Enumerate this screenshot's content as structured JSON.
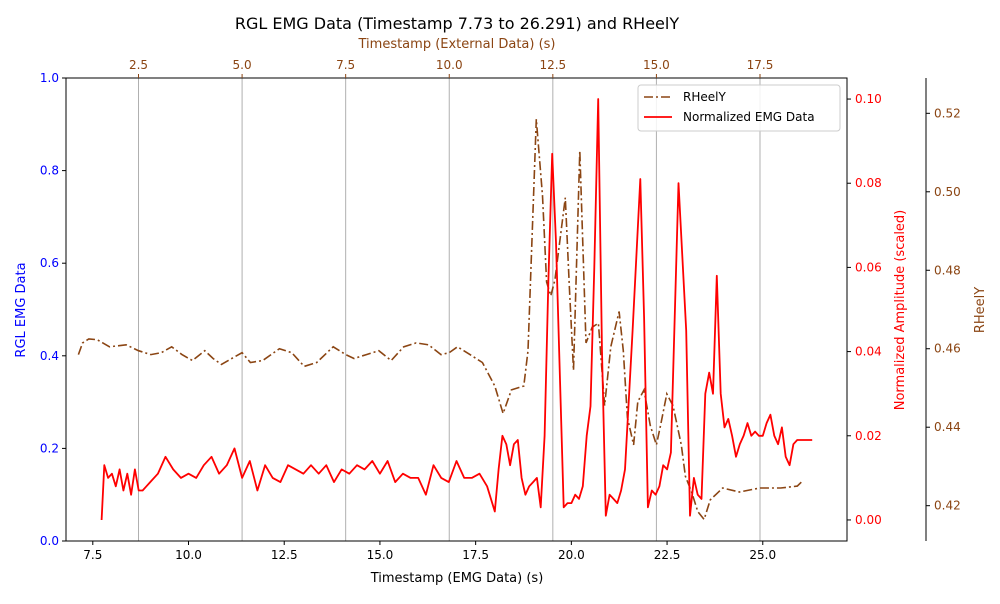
{
  "colors": {
    "left_axis": "#0000ff",
    "right_axis": "#ff0000",
    "far_right_axis": "#8b4513",
    "top_axis": "#8b4513",
    "emg_line": "#ff0000",
    "rheel_line": "#8b4513",
    "grid": "#b0b0b0"
  },
  "chart_data": {
    "type": "line",
    "title": "RGL EMG Data (Timestamp 7.73 to 26.291) and RHeelY",
    "xlabel": "Timestamp (EMG Data) (s)",
    "xlim": [
      6.8,
      27.2
    ],
    "xticks": [
      "7.5",
      "10.0",
      "12.5",
      "15.0",
      "17.5",
      "20.0",
      "22.5",
      "25.0"
    ],
    "top_axis": {
      "label": "Timestamp (External Data) (s)",
      "xlim": [
        0.75,
        19.6
      ],
      "ticks": [
        "2.5",
        "5.0",
        "7.5",
        "10.0",
        "12.5",
        "15.0",
        "17.5"
      ],
      "grid": true
    },
    "left_axis": {
      "label": "RGL EMG Data",
      "ylim": [
        0.0,
        1.0
      ],
      "ticks": [
        "0.0",
        "0.2",
        "0.4",
        "0.6",
        "0.8",
        "1.0"
      ]
    },
    "right_axis": {
      "label": "Normalized Amplitude (scaled)",
      "ylim": [
        -0.005,
        0.105
      ],
      "ticks": [
        "0.00",
        "0.02",
        "0.04",
        "0.06",
        "0.08",
        "0.10"
      ]
    },
    "far_right_axis": {
      "label": "RHeelY",
      "ylim": [
        0.411,
        0.529
      ],
      "ticks": [
        "0.42",
        "0.44",
        "0.46",
        "0.48",
        "0.50",
        "0.52"
      ]
    },
    "legend": {
      "position": "top-right",
      "entries": [
        "RHeelY",
        "Normalized EMG Data"
      ]
    },
    "series": [
      {
        "name": "RHeelY",
        "axis": "top/far_right",
        "style": "dash-dot",
        "x": [
          1.05,
          1.15,
          1.3,
          1.5,
          1.8,
          2.2,
          2.5,
          2.8,
          3.05,
          3.3,
          3.55,
          3.8,
          4.1,
          4.3,
          4.5,
          4.75,
          5.0,
          5.2,
          5.5,
          5.7,
          5.9,
          6.2,
          6.5,
          6.8,
          7.2,
          7.5,
          7.7,
          8.0,
          8.3,
          8.6,
          8.9,
          9.2,
          9.5,
          9.8,
          10.0,
          10.2,
          10.5,
          10.8,
          11.1,
          11.3,
          11.5,
          11.8,
          11.9,
          12.1,
          12.25,
          12.35,
          12.45,
          12.55,
          12.8,
          12.9,
          13.0,
          13.15,
          13.3,
          13.45,
          13.6,
          13.75,
          13.9,
          14.1,
          14.2,
          14.3,
          14.45,
          14.55,
          14.7,
          14.85,
          15.0,
          15.1,
          15.25,
          15.4,
          15.6,
          15.7,
          15.85,
          16.0,
          16.15,
          16.3,
          16.45,
          16.6,
          17.0,
          17.5,
          18.0,
          18.4,
          18.5
        ],
        "values": [
          0.4585,
          0.4615,
          0.4625,
          0.4623,
          0.4605,
          0.461,
          0.4595,
          0.4585,
          0.459,
          0.4605,
          0.4585,
          0.457,
          0.4595,
          0.4575,
          0.456,
          0.4575,
          0.459,
          0.4565,
          0.457,
          0.4585,
          0.46,
          0.459,
          0.4555,
          0.4565,
          0.4605,
          0.4585,
          0.4575,
          0.4585,
          0.4595,
          0.457,
          0.4605,
          0.4615,
          0.461,
          0.4585,
          0.459,
          0.4605,
          0.4585,
          0.4565,
          0.4505,
          0.4435,
          0.4495,
          0.4505,
          0.4595,
          0.5185,
          0.499,
          0.477,
          0.4735,
          0.4775,
          0.4985,
          0.4755,
          0.4545,
          0.5105,
          0.4615,
          0.4655,
          0.4665,
          0.4455,
          0.4605,
          0.4695,
          0.4595,
          0.4425,
          0.4355,
          0.4465,
          0.4495,
          0.4405,
          0.4355,
          0.4405,
          0.4485,
          0.4455,
          0.4355,
          0.4275,
          0.4235,
          0.4185,
          0.4165,
          0.4215,
          0.423,
          0.4245,
          0.4235,
          0.4245,
          0.4245,
          0.425,
          0.426
        ]
      },
      {
        "name": "Normalized EMG Data",
        "axis": "bottom/right",
        "style": "solid",
        "x": [
          7.73,
          7.8,
          7.9,
          8.0,
          8.1,
          8.2,
          8.3,
          8.4,
          8.5,
          8.6,
          8.7,
          8.8,
          8.9,
          9.0,
          9.2,
          9.4,
          9.6,
          9.8,
          10.0,
          10.2,
          10.4,
          10.6,
          10.8,
          11.0,
          11.2,
          11.4,
          11.6,
          11.8,
          12.0,
          12.2,
          12.4,
          12.6,
          12.8,
          13.0,
          13.2,
          13.4,
          13.6,
          13.8,
          14.0,
          14.2,
          14.4,
          14.6,
          14.8,
          15.0,
          15.2,
          15.4,
          15.6,
          15.8,
          16.0,
          16.2,
          16.4,
          16.6,
          16.8,
          17.0,
          17.2,
          17.4,
          17.6,
          17.8,
          18.0,
          18.1,
          18.2,
          18.3,
          18.4,
          18.5,
          18.6,
          18.7,
          18.8,
          18.9,
          19.0,
          19.1,
          19.2,
          19.3,
          19.4,
          19.5,
          19.6,
          19.8,
          19.9,
          20.0,
          20.1,
          20.2,
          20.3,
          20.4,
          20.5,
          20.6,
          20.7,
          20.8,
          20.9,
          21.0,
          21.1,
          21.2,
          21.3,
          21.4,
          21.6,
          21.8,
          21.9,
          22.0,
          22.1,
          22.2,
          22.3,
          22.4,
          22.5,
          22.6,
          22.8,
          23.0,
          23.1,
          23.2,
          23.3,
          23.4,
          23.5,
          23.6,
          23.7,
          23.8,
          23.9,
          24.0,
          24.1,
          24.2,
          24.3,
          24.4,
          24.5,
          24.6,
          24.7,
          24.8,
          24.9,
          25.0,
          25.1,
          25.2,
          25.3,
          25.4,
          25.5,
          25.6,
          25.7,
          25.8,
          25.9,
          26.0,
          26.1,
          26.2,
          26.29
        ],
        "values": [
          0.0,
          0.013,
          0.01,
          0.011,
          0.008,
          0.012,
          0.007,
          0.011,
          0.006,
          0.012,
          0.007,
          0.007,
          0.008,
          0.009,
          0.011,
          0.015,
          0.012,
          0.01,
          0.011,
          0.01,
          0.013,
          0.015,
          0.011,
          0.013,
          0.017,
          0.01,
          0.014,
          0.007,
          0.013,
          0.01,
          0.009,
          0.013,
          0.012,
          0.011,
          0.013,
          0.011,
          0.013,
          0.009,
          0.012,
          0.011,
          0.013,
          0.012,
          0.014,
          0.011,
          0.014,
          0.009,
          0.011,
          0.01,
          0.01,
          0.006,
          0.013,
          0.01,
          0.009,
          0.014,
          0.01,
          0.01,
          0.011,
          0.008,
          0.002,
          0.012,
          0.02,
          0.018,
          0.013,
          0.018,
          0.019,
          0.01,
          0.006,
          0.008,
          0.009,
          0.01,
          0.003,
          0.02,
          0.057,
          0.087,
          0.066,
          0.003,
          0.004,
          0.004,
          0.006,
          0.005,
          0.008,
          0.02,
          0.027,
          0.06,
          0.1,
          0.04,
          0.001,
          0.006,
          0.005,
          0.004,
          0.007,
          0.012,
          0.045,
          0.081,
          0.048,
          0.003,
          0.007,
          0.006,
          0.008,
          0.013,
          0.012,
          0.016,
          0.08,
          0.045,
          0.001,
          0.01,
          0.006,
          0.005,
          0.03,
          0.035,
          0.03,
          0.058,
          0.03,
          0.022,
          0.024,
          0.02,
          0.015,
          0.018,
          0.02,
          0.023,
          0.02,
          0.021,
          0.02,
          0.02,
          0.023,
          0.025,
          0.02,
          0.018,
          0.022,
          0.015,
          0.013,
          0.018,
          0.019,
          0.019,
          0.019,
          0.019,
          0.019
        ]
      }
    ]
  }
}
